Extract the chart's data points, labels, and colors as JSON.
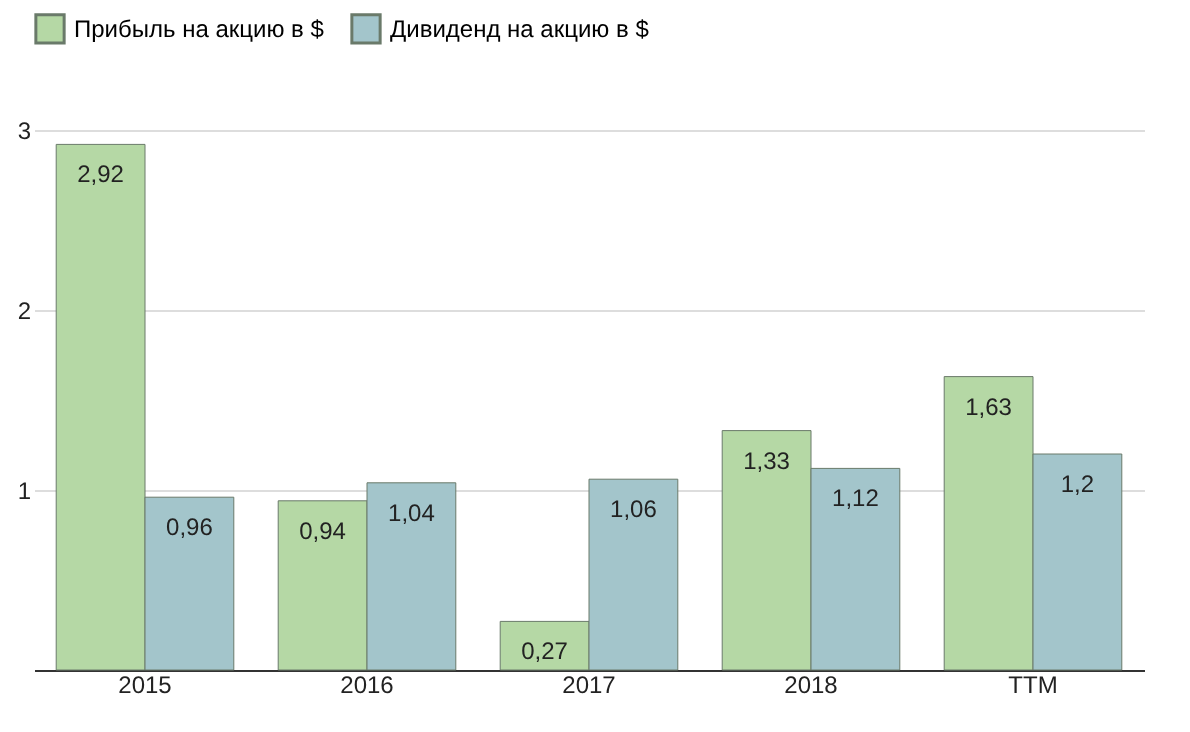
{
  "chart_data": {
    "type": "bar",
    "categories": [
      "2015",
      "2016",
      "2017",
      "2018",
      "TTM"
    ],
    "series": [
      {
        "name": "Прибыль на акцию в $",
        "color": "#b5d8a5",
        "values": [
          2.92,
          0.94,
          0.27,
          1.33,
          1.63
        ],
        "value_labels": [
          "2,92",
          "0,94",
          "0,27",
          "1,33",
          "1,63"
        ]
      },
      {
        "name": "Дивиденд на акцию в $",
        "color": "#a3c5cb",
        "values": [
          0.96,
          1.04,
          1.06,
          1.12,
          1.2
        ],
        "value_labels": [
          "0,96",
          "1,04",
          "1,06",
          "1,12",
          "1,2"
        ]
      }
    ],
    "ylim": [
      0,
      3
    ],
    "yticks": [
      1,
      2,
      3
    ],
    "grid": "y",
    "legend": "top left"
  }
}
